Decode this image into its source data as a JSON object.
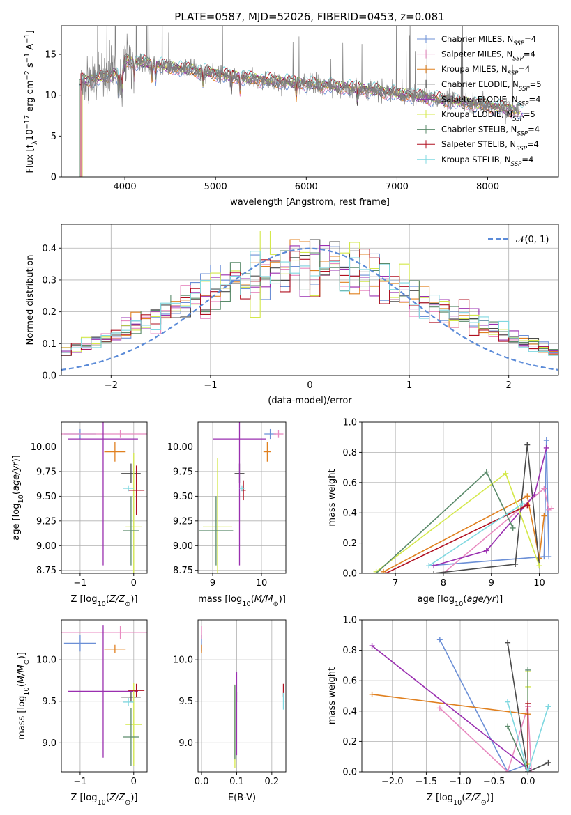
{
  "figure": {
    "title": "PLATE=0587, MJD=52026, FIBERID=0453, z=0.081"
  },
  "colors": {
    "Chabrier MILES": "#6b8fd6",
    "Salpeter MILES": "#e88ac0",
    "Kroupa MILES": "#e0801f",
    "Chabrier ELODIE": "#4a4a4a",
    "Salpeter ELODIE": "#9a2fb0",
    "Kroupa ELODIE": "#d4e84a",
    "Chabrier STELIB": "#5a8a6a",
    "Salpeter STELIB": "#b01020",
    "Kroupa STELIB": "#7fd8e0",
    "data": "#808080",
    "normal": "#5b8bd8"
  },
  "chart_data": [
    {
      "id": "spectrum",
      "type": "line",
      "title": "PLATE=0587, MJD=52026, FIBERID=0453, z=0.081",
      "xlabel": "wavelength [Angstrom, rest frame]",
      "ylabel": "Flux [f_λ 10^-17 erg cm^-2 s^-1 A^-1]",
      "xlim": [
        3300,
        8780
      ],
      "ylim": [
        0,
        18.5
      ],
      "xticks": [
        4000,
        5000,
        6000,
        7000,
        8000
      ],
      "yticks": [
        0,
        5,
        10,
        15
      ],
      "legend_position": "top-right",
      "legend": [
        {
          "name": "Chabrier MILES, N_SSP=4"
        },
        {
          "name": "Salpeter MILES, N_SSP=4"
        },
        {
          "name": "Kroupa MILES, N_SSP=4"
        },
        {
          "name": "Chabrier ELODIE, N_SSP=5"
        },
        {
          "name": "Salpeter ELODIE, N_SSP=4"
        },
        {
          "name": "Kroupa ELODIE, N_SSP=5"
        },
        {
          "name": "Chabrier STELIB, N_SSP=4"
        },
        {
          "name": "Salpeter STELIB, N_SSP=4"
        },
        {
          "name": "Kroupa STELIB, N_SSP=4"
        }
      ],
      "continuum": {
        "x": [
          3550,
          3700,
          3850,
          4000,
          4200,
          4400,
          4600,
          4800,
          5000,
          5200,
          5400,
          5600,
          5800,
          6000,
          6200,
          6400,
          6600,
          6800,
          7000,
          7200,
          7400,
          7600,
          7800,
          8000,
          8200,
          8400
        ],
        "y": [
          11.8,
          12.0,
          12.5,
          14.2,
          14.0,
          13.6,
          13.3,
          13.0,
          12.6,
          12.3,
          12.0,
          11.8,
          11.6,
          11.4,
          11.2,
          11.0,
          10.8,
          10.5,
          10.2,
          9.9,
          9.6,
          9.3,
          9.0,
          8.7,
          8.3,
          7.9
        ]
      }
    },
    {
      "id": "residuals",
      "type": "histogram",
      "xlabel": "(data-model)/error",
      "ylabel": "Normed distribution",
      "xlim": [
        -2.5,
        2.5
      ],
      "ylim": [
        0,
        0.475
      ],
      "xticks": [
        -2,
        -1,
        0,
        1,
        2
      ],
      "yticks": [
        0.0,
        0.1,
        0.2,
        0.3,
        0.4
      ],
      "legend_position": "top-right",
      "legend": [
        {
          "name": "𝒩(0, 1)"
        }
      ],
      "bin_width": 0.1
    },
    {
      "id": "age_vs_Z",
      "type": "errorbar",
      "xlabel": "Z [log10(Z/Z⊙)]",
      "ylabel": "age [log10(age/yr)]",
      "xlim": [
        -1.35,
        0.25
      ],
      "ylim": [
        8.72,
        10.25
      ],
      "xticks": [
        -1,
        0
      ],
      "yticks": [
        8.75,
        9.0,
        9.25,
        9.5,
        9.75,
        10.0
      ],
      "points": [
        {
          "model": "Chabrier MILES",
          "x": -1.0,
          "y": 10.13,
          "xerr": 0.3,
          "yerr": 0.05
        },
        {
          "model": "Salpeter MILES",
          "x": -0.25,
          "y": 10.13,
          "xerr": 1.1,
          "yerr": 0.04
        },
        {
          "model": "Kroupa MILES",
          "x": -0.35,
          "y": 9.95,
          "xerr": 0.2,
          "yerr": 0.1
        },
        {
          "model": "Chabrier ELODIE",
          "x": -0.05,
          "y": 9.73,
          "xerr": 0.18,
          "yerr": 0.1
        },
        {
          "model": "Salpeter ELODIE",
          "x": -0.57,
          "y": 10.08,
          "xerr": 0.65,
          "yerr": 1.28
        },
        {
          "model": "Kroupa ELODIE",
          "x": 0.0,
          "y": 9.19,
          "xerr": 0.15,
          "yerr": 0.75
        },
        {
          "model": "Chabrier STELIB",
          "x": -0.05,
          "y": 9.15,
          "xerr": 0.15,
          "yerr": 0.35
        },
        {
          "model": "Salpeter STELIB",
          "x": 0.05,
          "y": 9.56,
          "xerr": 0.15,
          "yerr": 0.25
        },
        {
          "model": "Kroupa STELIB",
          "x": -0.1,
          "y": 9.58,
          "xerr": 0.1,
          "yerr": 0.03
        }
      ]
    },
    {
      "id": "age_vs_mass",
      "type": "errorbar",
      "xlabel": "mass [log10(M/M⊙)]",
      "ylabel": "",
      "xlim": [
        8.7,
        10.5
      ],
      "ylim": [
        8.72,
        10.25
      ],
      "xticks": [
        9,
        10
      ],
      "yticks": [
        8.75,
        9.0,
        9.25,
        9.5,
        9.75,
        10.0
      ],
      "points": [
        {
          "model": "Chabrier MILES",
          "x": 10.18,
          "y": 10.13,
          "xerr": 0.12,
          "yerr": 0.05
        },
        {
          "model": "Salpeter MILES",
          "x": 10.35,
          "y": 10.13,
          "xerr": 0.1,
          "yerr": 0.04
        },
        {
          "model": "Kroupa MILES",
          "x": 10.12,
          "y": 9.95,
          "xerr": 0.08,
          "yerr": 0.1
        },
        {
          "model": "Chabrier ELODIE",
          "x": 9.55,
          "y": 9.73,
          "xerr": 0.1,
          "yerr": 0.1
        },
        {
          "model": "Salpeter ELODIE",
          "x": 9.55,
          "y": 10.08,
          "xerr": 0.55,
          "yerr": 1.28
        },
        {
          "model": "Kroupa ELODIE",
          "x": 9.1,
          "y": 9.19,
          "xerr": 0.3,
          "yerr": 0.7
        },
        {
          "model": "Chabrier STELIB",
          "x": 9.07,
          "y": 9.15,
          "xerr": 0.35,
          "yerr": 0.35
        },
        {
          "model": "Salpeter STELIB",
          "x": 9.63,
          "y": 9.56,
          "xerr": 0.05,
          "yerr": 0.1
        },
        {
          "model": "Kroupa STELIB",
          "x": 9.6,
          "y": 9.58,
          "xerr": 0.05,
          "yerr": 0.03
        }
      ]
    },
    {
      "id": "weight_vs_age",
      "type": "line",
      "xlabel": "age [log10(age/yr)]",
      "ylabel": "mass weight",
      "xlim": [
        6.3,
        10.4
      ],
      "ylim": [
        0,
        1.0
      ],
      "xticks": [
        7,
        8,
        9,
        10
      ],
      "yticks": [
        0.0,
        0.2,
        0.4,
        0.6,
        0.8,
        1.0
      ],
      "series": [
        {
          "model": "Chabrier MILES",
          "x": [
            7.7,
            10.1,
            10.15,
            10.2
          ],
          "y": [
            0.05,
            0.11,
            0.88,
            0.11
          ]
        },
        {
          "model": "Salpeter MILES",
          "x": [
            8.0,
            10.1,
            10.2,
            10.25
          ],
          "y": [
            0.0,
            0.56,
            0.42,
            0.43
          ]
        },
        {
          "model": "Kroupa MILES",
          "x": [
            6.75,
            9.75,
            10.0,
            10.1
          ],
          "y": [
            0.01,
            0.51,
            0.1,
            0.38
          ]
        },
        {
          "model": "Chabrier ELODIE",
          "x": [
            7.8,
            9.5,
            9.75,
            10.0
          ],
          "y": [
            0.0,
            0.06,
            0.85,
            0.05
          ]
        },
        {
          "model": "Salpeter ELODIE",
          "x": [
            7.8,
            8.9,
            9.9,
            10.15
          ],
          "y": [
            0.05,
            0.15,
            0.52,
            0.83
          ]
        },
        {
          "model": "Kroupa ELODIE",
          "x": [
            6.6,
            9.3,
            10.0
          ],
          "y": [
            0.01,
            0.66,
            0.05
          ]
        },
        {
          "model": "Chabrier STELIB",
          "x": [
            6.6,
            8.9,
            9.45
          ],
          "y": [
            0.0,
            0.67,
            0.3
          ]
        },
        {
          "model": "Salpeter STELIB",
          "x": [
            6.8,
            9.75
          ],
          "y": [
            0.0,
            0.45
          ]
        },
        {
          "model": "Kroupa STELIB",
          "x": [
            7.7,
            9.65
          ],
          "y": [
            0.05,
            0.46
          ]
        }
      ]
    },
    {
      "id": "mass_vs_Z",
      "type": "errorbar",
      "xlabel": "Z [log10(Z/Z⊙)]",
      "ylabel": "mass [log10(M/M⊙)]",
      "xlim": [
        -1.35,
        0.25
      ],
      "ylim": [
        8.65,
        10.48
      ],
      "xticks": [
        -1,
        0
      ],
      "yticks": [
        9.0,
        9.5,
        10.0
      ],
      "points": [
        {
          "model": "Chabrier MILES",
          "x": -1.0,
          "y": 10.2,
          "xerr": 0.3,
          "yerr": 0.1
        },
        {
          "model": "Salpeter MILES",
          "x": -0.25,
          "y": 10.33,
          "xerr": 1.1,
          "yerr": 0.08
        },
        {
          "model": "Kroupa MILES",
          "x": -0.35,
          "y": 10.13,
          "xerr": 0.2,
          "yerr": 0.05
        },
        {
          "model": "Chabrier ELODIE",
          "x": -0.05,
          "y": 9.55,
          "xerr": 0.18,
          "yerr": 0.06
        },
        {
          "model": "Salpeter ELODIE",
          "x": -0.57,
          "y": 9.62,
          "xerr": 0.65,
          "yerr": 0.8
        },
        {
          "model": "Kroupa ELODIE",
          "x": 0.0,
          "y": 9.22,
          "xerr": 0.15,
          "yerr": 0.5
        },
        {
          "model": "Chabrier STELIB",
          "x": -0.05,
          "y": 9.07,
          "xerr": 0.15,
          "yerr": 0.35
        },
        {
          "model": "Salpeter STELIB",
          "x": 0.05,
          "y": 9.63,
          "xerr": 0.15,
          "yerr": 0.08
        },
        {
          "model": "Kroupa STELIB",
          "x": -0.1,
          "y": 9.49,
          "xerr": 0.1,
          "yerr": 0.05
        }
      ]
    },
    {
      "id": "mass_vs_ebv",
      "type": "errorbar",
      "xlabel": "E(B-V)",
      "ylabel": "",
      "xlim": [
        -0.01,
        0.24
      ],
      "ylim": [
        8.65,
        10.48
      ],
      "xticks": [
        0.0,
        0.1,
        0.2
      ],
      "yticks": [
        9.0,
        9.5,
        10.0
      ],
      "points": [
        {
          "model": "Chabrier MILES",
          "x": 0.0,
          "y": 10.2,
          "xerr": 0.0,
          "yerr": 0.1
        },
        {
          "model": "Salpeter MILES",
          "x": 0.0,
          "y": 10.33,
          "xerr": 0.0,
          "yerr": 0.08
        },
        {
          "model": "Kroupa MILES",
          "x": 0.0,
          "y": 10.13,
          "xerr": 0.0,
          "yerr": 0.05
        },
        {
          "model": "Chabrier ELODIE",
          "x": 0.1,
          "y": 9.55,
          "xerr": 0.0,
          "yerr": 0.06
        },
        {
          "model": "Salpeter ELODIE",
          "x": 0.1,
          "y": 9.35,
          "xerr": 0.0,
          "yerr": 0.5
        },
        {
          "model": "Kroupa ELODIE",
          "x": 0.095,
          "y": 9.2,
          "xerr": 0.0,
          "yerr": 0.5
        },
        {
          "model": "Chabrier STELIB",
          "x": 0.095,
          "y": 9.25,
          "xerr": 0.0,
          "yerr": 0.45
        },
        {
          "model": "Salpeter STELIB",
          "x": 0.233,
          "y": 9.63,
          "xerr": 0.0,
          "yerr": 0.08
        },
        {
          "model": "Kroupa STELIB",
          "x": 0.233,
          "y": 9.5,
          "xerr": 0.0,
          "yerr": 0.1
        }
      ]
    },
    {
      "id": "weight_vs_Z",
      "type": "line",
      "xlabel": "Z [log10(Z/Z⊙)]",
      "ylabel": "mass weight",
      "xlim": [
        -2.45,
        0.45
      ],
      "ylim": [
        0,
        1.0
      ],
      "xticks": [
        -2.0,
        -1.5,
        -1.0,
        -0.5,
        0.0
      ],
      "yticks": [
        0.0,
        0.2,
        0.4,
        0.6,
        0.8,
        1.0
      ],
      "series": [
        {
          "model": "Chabrier MILES",
          "x": [
            -1.3,
            -0.3,
            0.0
          ],
          "y": [
            0.87,
            0.0,
            0.05
          ]
        },
        {
          "model": "Salpeter MILES",
          "x": [
            -1.3,
            -0.3,
            0.0,
            0.05
          ],
          "y": [
            0.42,
            0.0,
            0.43,
            0.0
          ]
        },
        {
          "model": "Kroupa MILES",
          "x": [
            -2.3,
            0.0
          ],
          "y": [
            0.51,
            0.38
          ]
        },
        {
          "model": "Chabrier ELODIE",
          "x": [
            -0.3,
            0.0,
            0.3
          ],
          "y": [
            0.85,
            0.0,
            0.06
          ]
        },
        {
          "model": "Salpeter ELODIE",
          "x": [
            -2.3,
            0.0
          ],
          "y": [
            0.83,
            0.02
          ]
        },
        {
          "model": "Kroupa ELODIE",
          "x": [
            0.0,
            0.0,
            0.0
          ],
          "y": [
            0.66,
            0.56,
            0.05
          ]
        },
        {
          "model": "Chabrier STELIB",
          "x": [
            -0.3,
            0.0,
            0.0
          ],
          "y": [
            0.3,
            0.0,
            0.67
          ]
        },
        {
          "model": "Salpeter STELIB",
          "x": [
            0.0,
            0.0
          ],
          "y": [
            0.45,
            0.0
          ]
        },
        {
          "model": "Kroupa STELIB",
          "x": [
            -0.3,
            0.0,
            0.3
          ],
          "y": [
            0.46,
            0.0,
            0.43
          ]
        }
      ]
    }
  ]
}
